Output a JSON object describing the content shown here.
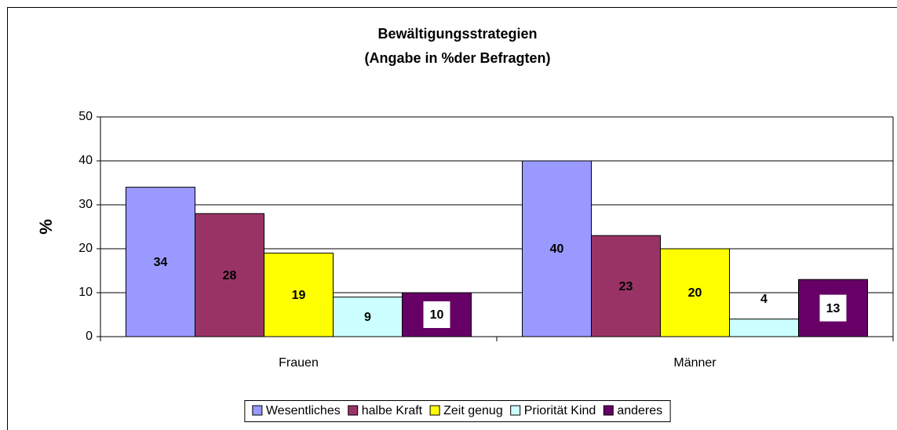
{
  "chart_data": {
    "type": "bar",
    "title": [
      "Bewältigungsstrategien",
      "(Angabe in %der Befragten)"
    ],
    "y_label": "%",
    "categories": [
      "Frauen",
      "Männer"
    ],
    "series": [
      {
        "name": "Wesentliches",
        "color": "#9999ff",
        "values": [
          34,
          40
        ]
      },
      {
        "name": "halbe Kraft",
        "color": "#993366",
        "values": [
          28,
          23
        ]
      },
      {
        "name": "Zeit genug",
        "color": "#ffff00",
        "values": [
          19,
          20
        ]
      },
      {
        "name": "Priorität Kind",
        "color": "#ccffff",
        "values": [
          9,
          4
        ]
      },
      {
        "name": "anderes",
        "color": "#660066",
        "values": [
          10,
          13
        ]
      }
    ],
    "ylim": [
      0,
      50
    ],
    "yticks": [
      0,
      10,
      20,
      30,
      40,
      50
    ],
    "grid": true,
    "legend": "bottom"
  }
}
